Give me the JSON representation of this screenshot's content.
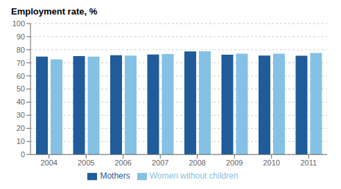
{
  "chart_data": {
    "type": "bar",
    "title": "Employment rate, %",
    "categories": [
      "2004",
      "2005",
      "2006",
      "2007",
      "2008",
      "2009",
      "2010",
      "2011"
    ],
    "series": [
      {
        "name": "Mothers",
        "color": "#1F5C99",
        "values": [
          74.8,
          75.2,
          75.8,
          76.3,
          78.7,
          76.2,
          75.5,
          75.4
        ]
      },
      {
        "name": "Women without children",
        "color": "#85C1E5",
        "values": [
          72.7,
          74.8,
          75.5,
          76.8,
          78.8,
          77.0,
          77.0,
          77.5
        ]
      }
    ],
    "ylim": [
      0,
      100
    ],
    "yticks": [
      0,
      10,
      20,
      30,
      40,
      50,
      60,
      70,
      80,
      90,
      100
    ],
    "grid": true,
    "legend": "bottom"
  }
}
